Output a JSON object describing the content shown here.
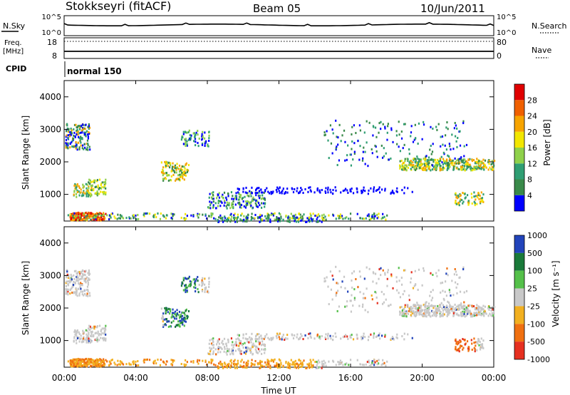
{
  "header": {
    "station": "Stokkseyri (fitACF)",
    "beam": "Beam 05",
    "date": "10/Jun/2011"
  },
  "noise_panel": {
    "left_label": "N.Sky",
    "left_ticks": [
      "10^5",
      "10^0"
    ],
    "right_ticks": [
      "10^5",
      "10^0"
    ],
    "right_label": "N.Search"
  },
  "freq_panel": {
    "left_label_1": "Freq.",
    "left_label_2": "[MHz]",
    "left_ticks": [
      "18",
      "8"
    ],
    "right_ticks": [
      "80",
      "0"
    ],
    "right_label": "Nave"
  },
  "cpid": {
    "label": "CPID",
    "mode": "normal 150"
  },
  "colors": {
    "power": [
      "#0000ff",
      "#3a8a4a",
      "#2f9e73",
      "#8fd14b",
      "#f2e600",
      "#f7a400",
      "#f06000",
      "#e00000"
    ],
    "velocity": [
      "#2244bb",
      "#1a7a3a",
      "#55c04a",
      "#c8c8c8",
      "#f2b020",
      "#f07010",
      "#e63020"
    ]
  },
  "chart_data": [
    {
      "type": "heatmap",
      "title": "",
      "xlabel": "",
      "ylabel": "Slant Range [km]",
      "x_ticks": [
        "00:00",
        "04:00",
        "08:00",
        "12:00",
        "16:00",
        "20:00",
        "00:00"
      ],
      "y_ticks": [
        "1000",
        "2000",
        "3000",
        "4000"
      ],
      "ylim": [
        180,
        4500
      ],
      "colorbar_label": "Power [dB]",
      "colorbar_ticks": [
        "4",
        "8",
        "12",
        "16",
        "20",
        "24",
        "28"
      ],
      "clim": [
        0,
        32
      ]
    },
    {
      "type": "heatmap",
      "title": "",
      "xlabel": "Time UT",
      "ylabel": "Slant Range [km]",
      "x_ticks": [
        "00:00",
        "04:00",
        "08:00",
        "12:00",
        "16:00",
        "20:00",
        "00:00"
      ],
      "y_ticks": [
        "1000",
        "2000",
        "3000",
        "4000"
      ],
      "ylim": [
        180,
        4500
      ],
      "colorbar_label": "Velocity [m s⁻¹]",
      "colorbar_ticks": [
        "1000",
        "500",
        "100",
        "25",
        "-25",
        "-100",
        "-500",
        "-1000"
      ]
    }
  ]
}
